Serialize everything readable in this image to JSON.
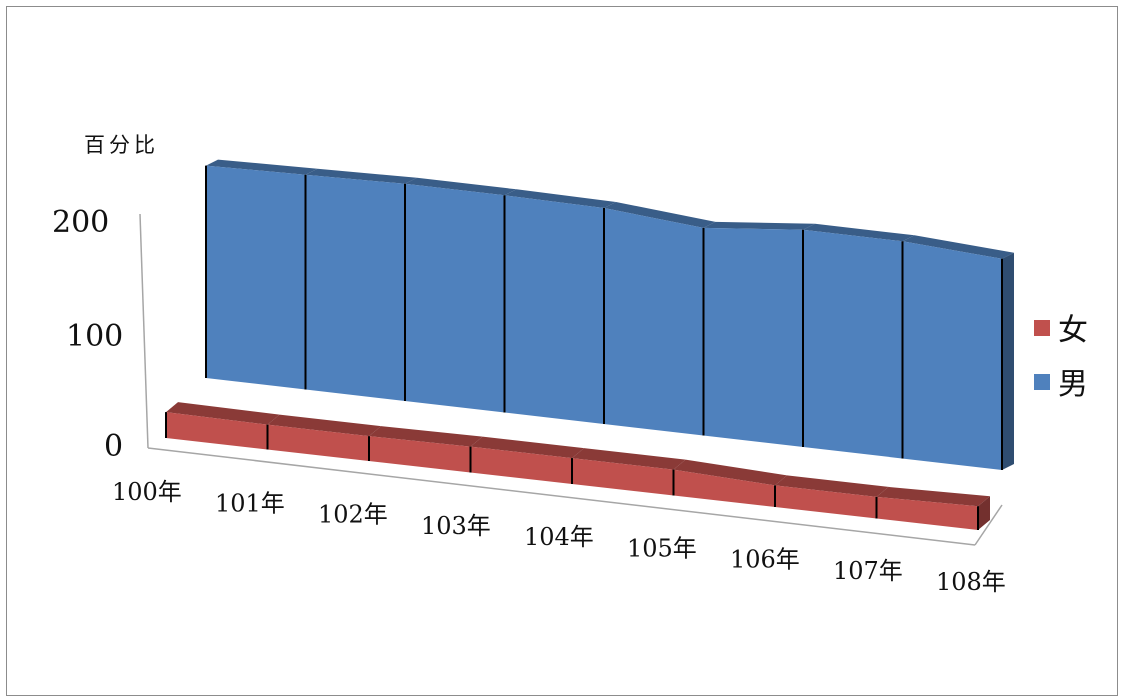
{
  "chart_data": {
    "type": "area",
    "ylabel": "百分比",
    "yticks": [
      "200",
      "100",
      "0"
    ],
    "ylim": [
      0,
      200
    ],
    "categories": [
      "100年",
      "101年",
      "102年",
      "103年",
      "104年",
      "105年",
      "106年",
      "107年",
      "108年"
    ],
    "series": [
      {
        "name": "女",
        "color": "#c0504d",
        "values": [
          48,
          46,
          46,
          48,
          48,
          48,
          40,
          40,
          44
        ]
      },
      {
        "name": "男",
        "color": "#4f81bd",
        "values": [
          177,
          179,
          181,
          181,
          180,
          173,
          181,
          181,
          176
        ]
      }
    ],
    "legend_position": "right",
    "grid": false
  }
}
